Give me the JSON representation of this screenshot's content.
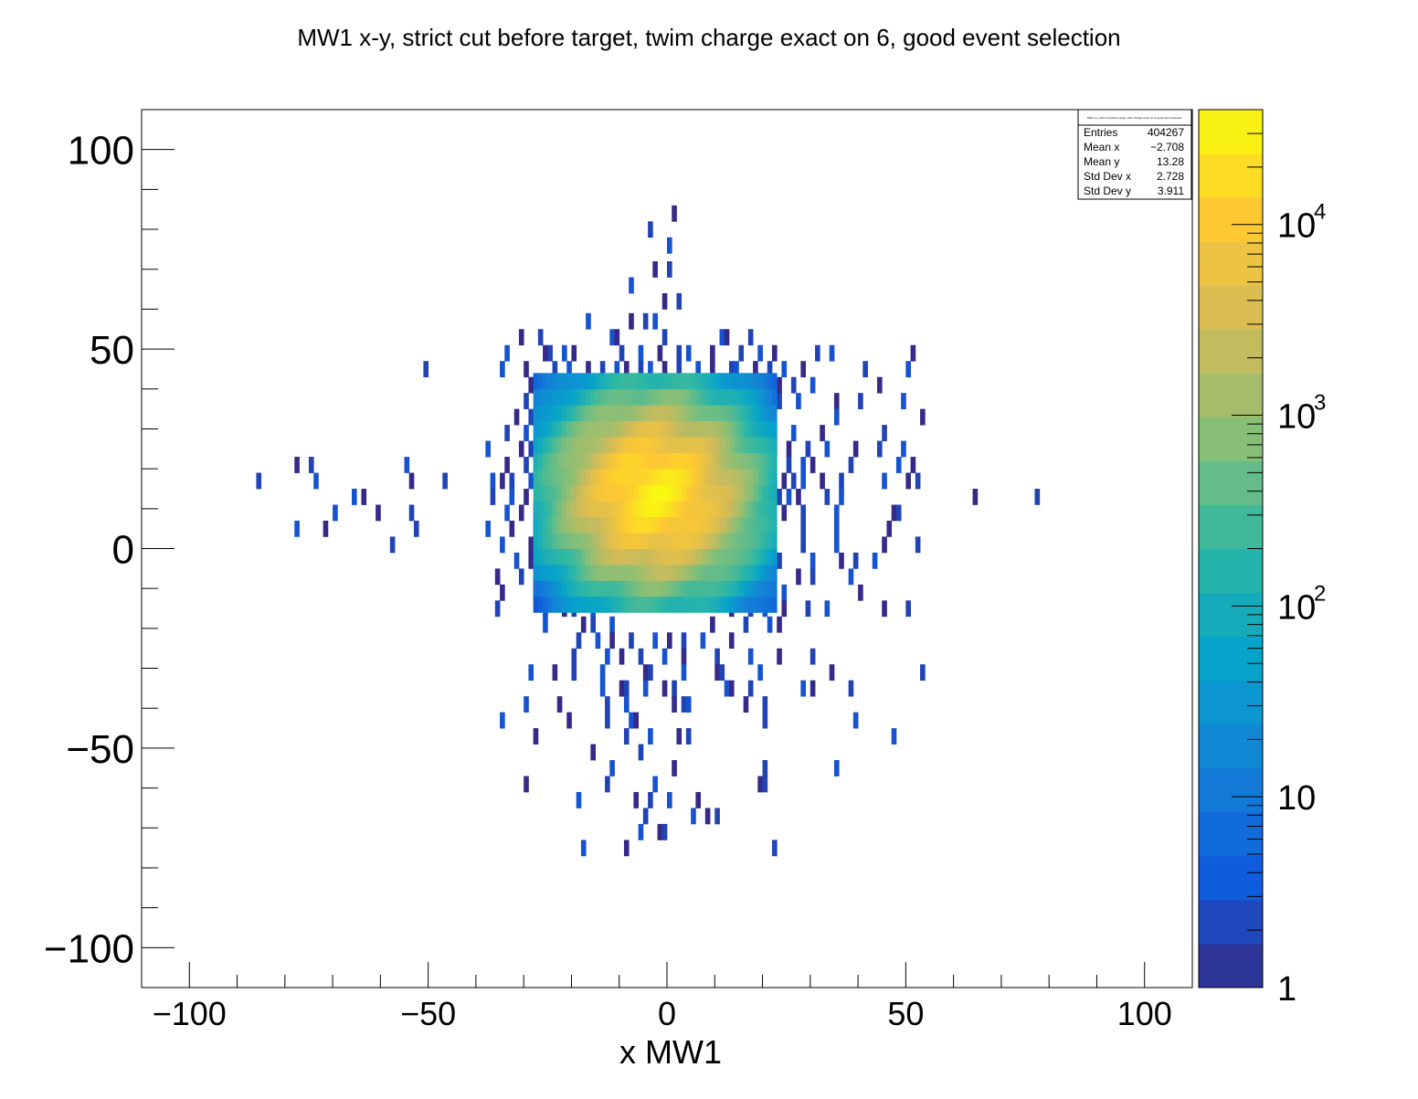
{
  "chart_data": {
    "type": "heatmap",
    "title": "MW1 x-y, strict cut before target, twim charge exact on  6, good event selection",
    "xlabel": "x MW1",
    "ylabel": "",
    "xlim": [
      -110,
      110
    ],
    "ylim": [
      -110,
      110
    ],
    "x_ticks": [
      "−100",
      "−50",
      "0",
      "50",
      "100"
    ],
    "y_ticks": [
      "100",
      "50",
      "0",
      "−50",
      "−100"
    ],
    "z_scale": "log",
    "z_range": [
      1,
      40000
    ],
    "z_ticks": [
      "1",
      "10",
      "10",
      "10",
      "10"
    ],
    "z_tick_exponents": [
      "",
      "",
      "2",
      "3",
      "4"
    ],
    "bin_width": 1,
    "bin_height": 4,
    "grid": false,
    "stats": {
      "legend_title": "MW1 x-y, strict cut before target, twim charge exact on 6, good event selection",
      "rows": [
        {
          "label": "Entries",
          "value": "404267"
        },
        {
          "label": "Mean x",
          "value": "−2.708"
        },
        {
          "label": "Mean y",
          "value": "13.28"
        },
        {
          "label": "Std Dev x",
          "value": "2.728"
        },
        {
          "label": "Std Dev y",
          "value": "3.911"
        }
      ]
    },
    "core": {
      "center_x": -3.0,
      "center_y": 14.0,
      "sigma_x": 5.5,
      "sigma_y": 6.5,
      "peak_count": 30000
    },
    "halo_cells": [
      [
        1,
        84
      ],
      [
        -4,
        80
      ],
      [
        0,
        76
      ],
      [
        -3,
        70
      ],
      [
        0,
        70
      ],
      [
        -8,
        66
      ],
      [
        -1,
        62
      ],
      [
        2,
        62
      ],
      [
        -17,
        57
      ],
      [
        -8,
        57
      ],
      [
        -5,
        57
      ],
      [
        -3,
        57
      ],
      [
        -31,
        53
      ],
      [
        -27,
        53
      ],
      [
        -12,
        53
      ],
      [
        -11,
        53
      ],
      [
        -1,
        53
      ],
      [
        11,
        53
      ],
      [
        12,
        53
      ],
      [
        17,
        53
      ],
      [
        -34,
        49
      ],
      [
        -26,
        49
      ],
      [
        -25,
        49
      ],
      [
        -22,
        49
      ],
      [
        -20,
        49
      ],
      [
        -10,
        49
      ],
      [
        -6,
        49
      ],
      [
        -2,
        49
      ],
      [
        2,
        49
      ],
      [
        4,
        49
      ],
      [
        9,
        49
      ],
      [
        15,
        49
      ],
      [
        19,
        49
      ],
      [
        22,
        49
      ],
      [
        31,
        49
      ],
      [
        34,
        49
      ],
      [
        51,
        49
      ],
      [
        -51,
        45
      ],
      [
        -35,
        45
      ],
      [
        -30,
        45
      ],
      [
        -24,
        45
      ],
      [
        -21,
        45
      ],
      [
        -17,
        45
      ],
      [
        -14,
        45
      ],
      [
        -11,
        45
      ],
      [
        -9,
        45
      ],
      [
        -6,
        45
      ],
      [
        -4,
        45
      ],
      [
        -1,
        45
      ],
      [
        2,
        45
      ],
      [
        6,
        45
      ],
      [
        9,
        45
      ],
      [
        13,
        45
      ],
      [
        14,
        45
      ],
      [
        18,
        45
      ],
      [
        21,
        45
      ],
      [
        24,
        45
      ],
      [
        28,
        45
      ],
      [
        41,
        45
      ],
      [
        50,
        45
      ],
      [
        -29,
        41
      ],
      [
        -27,
        41
      ],
      [
        -24,
        41
      ],
      [
        -21,
        41
      ],
      [
        -19,
        41
      ],
      [
        -16,
        41
      ],
      [
        7,
        41
      ],
      [
        10,
        41
      ],
      [
        17,
        41
      ],
      [
        23,
        41
      ],
      [
        26,
        41
      ],
      [
        30,
        41
      ],
      [
        44,
        41
      ],
      [
        -30,
        37
      ],
      [
        -23,
        37
      ],
      [
        -20,
        37
      ],
      [
        -17,
        37
      ],
      [
        13,
        37
      ],
      [
        16,
        37
      ],
      [
        23,
        37
      ],
      [
        27,
        37
      ],
      [
        35,
        37
      ],
      [
        40,
        37
      ],
      [
        49,
        37
      ],
      [
        -32,
        33
      ],
      [
        -29,
        33
      ],
      [
        -26,
        33
      ],
      [
        -24,
        33
      ],
      [
        12,
        33
      ],
      [
        15,
        33
      ],
      [
        17,
        33
      ],
      [
        20,
        33
      ],
      [
        35,
        33
      ],
      [
        53,
        33
      ],
      [
        -34,
        29
      ],
      [
        -30,
        29
      ],
      [
        -27,
        29
      ],
      [
        -23,
        29
      ],
      [
        10,
        29
      ],
      [
        18,
        29
      ],
      [
        22,
        29
      ],
      [
        26,
        29
      ],
      [
        32,
        29
      ],
      [
        45,
        29
      ],
      [
        -38,
        25
      ],
      [
        -31,
        25
      ],
      [
        -29,
        25
      ],
      [
        -27,
        25
      ],
      [
        -25,
        25
      ],
      [
        -21,
        25
      ],
      [
        11,
        25
      ],
      [
        14,
        25
      ],
      [
        18,
        25
      ],
      [
        22,
        25
      ],
      [
        25,
        25
      ],
      [
        29,
        25
      ],
      [
        33,
        25
      ],
      [
        39,
        25
      ],
      [
        44,
        25
      ],
      [
        49,
        25
      ],
      [
        -78,
        21
      ],
      [
        -75,
        21
      ],
      [
        -55,
        21
      ],
      [
        -34,
        21
      ],
      [
        -30,
        21
      ],
      [
        -28,
        21
      ],
      [
        -25,
        21
      ],
      [
        -23,
        21
      ],
      [
        12,
        21
      ],
      [
        18,
        21
      ],
      [
        25,
        21
      ],
      [
        28,
        21
      ],
      [
        30,
        21
      ],
      [
        38,
        21
      ],
      [
        48,
        21
      ],
      [
        51,
        21
      ],
      [
        -86,
        17
      ],
      [
        -74,
        17
      ],
      [
        -54,
        17
      ],
      [
        -47,
        17
      ],
      [
        -37,
        17
      ],
      [
        -35,
        17
      ],
      [
        -33,
        17
      ],
      [
        -29,
        17
      ],
      [
        -27,
        17
      ],
      [
        -24,
        17
      ],
      [
        -22,
        17
      ],
      [
        12,
        17
      ],
      [
        18,
        17
      ],
      [
        22,
        17
      ],
      [
        24,
        17
      ],
      [
        26,
        17
      ],
      [
        28,
        17
      ],
      [
        32,
        17
      ],
      [
        36,
        17
      ],
      [
        45,
        17
      ],
      [
        50,
        17
      ],
      [
        52,
        17
      ],
      [
        -66,
        13
      ],
      [
        -64,
        13
      ],
      [
        -37,
        13
      ],
      [
        -33,
        13
      ],
      [
        -30,
        13
      ],
      [
        -27,
        13
      ],
      [
        -25,
        13
      ],
      [
        -23,
        13
      ],
      [
        13,
        13
      ],
      [
        16,
        13
      ],
      [
        19,
        13
      ],
      [
        23,
        13
      ],
      [
        25,
        13
      ],
      [
        27,
        13
      ],
      [
        33,
        13
      ],
      [
        36,
        13
      ],
      [
        64,
        13
      ],
      [
        77,
        13
      ],
      [
        -70,
        9
      ],
      [
        -61,
        9
      ],
      [
        -54,
        9
      ],
      [
        -34,
        9
      ],
      [
        -31,
        9
      ],
      [
        -28,
        9
      ],
      [
        -25,
        9
      ],
      [
        14,
        9
      ],
      [
        19,
        9
      ],
      [
        21,
        9
      ],
      [
        24,
        9
      ],
      [
        28,
        9
      ],
      [
        35,
        9
      ],
      [
        47,
        9
      ],
      [
        48,
        9
      ],
      [
        -78,
        5
      ],
      [
        -72,
        5
      ],
      [
        -53,
        5
      ],
      [
        -38,
        5
      ],
      [
        -33,
        5
      ],
      [
        -28,
        5
      ],
      [
        -25,
        5
      ],
      [
        -22,
        5
      ],
      [
        13,
        5
      ],
      [
        17,
        5
      ],
      [
        21,
        5
      ],
      [
        28,
        5
      ],
      [
        35,
        5
      ],
      [
        46,
        5
      ],
      [
        -58,
        1
      ],
      [
        -35,
        1
      ],
      [
        -29,
        1
      ],
      [
        -26,
        1
      ],
      [
        -24,
        1
      ],
      [
        14,
        1
      ],
      [
        17,
        1
      ],
      [
        19,
        1
      ],
      [
        21,
        1
      ],
      [
        28,
        1
      ],
      [
        35,
        1
      ],
      [
        45,
        1
      ],
      [
        52,
        1
      ],
      [
        -32,
        -3
      ],
      [
        -29,
        -3
      ],
      [
        -24,
        -3
      ],
      [
        15,
        -3
      ],
      [
        19,
        -3
      ],
      [
        23,
        -3
      ],
      [
        30,
        -3
      ],
      [
        36,
        -3
      ],
      [
        39,
        -3
      ],
      [
        43,
        -3
      ],
      [
        -36,
        -7
      ],
      [
        -31,
        -7
      ],
      [
        -28,
        -7
      ],
      [
        -24,
        -7
      ],
      [
        -20,
        -7
      ],
      [
        11,
        -7
      ],
      [
        14,
        -7
      ],
      [
        18,
        -7
      ],
      [
        20,
        -7
      ],
      [
        27,
        -7
      ],
      [
        30,
        -7
      ],
      [
        38,
        -7
      ],
      [
        -35,
        -11
      ],
      [
        -28,
        -11
      ],
      [
        -23,
        -11
      ],
      [
        -18,
        -11
      ],
      [
        -15,
        -11
      ],
      [
        12,
        -11
      ],
      [
        15,
        -11
      ],
      [
        19,
        -11
      ],
      [
        24,
        -11
      ],
      [
        40,
        -11
      ],
      [
        -36,
        -15
      ],
      [
        -26,
        -15
      ],
      [
        -22,
        -15
      ],
      [
        -20,
        -15
      ],
      [
        -16,
        -15
      ],
      [
        13,
        -15
      ],
      [
        17,
        -15
      ],
      [
        20,
        -15
      ],
      [
        24,
        -15
      ],
      [
        29,
        -15
      ],
      [
        33,
        -15
      ],
      [
        45,
        -15
      ],
      [
        50,
        -15
      ],
      [
        -26,
        -19
      ],
      [
        -18,
        -19
      ],
      [
        -16,
        -19
      ],
      [
        -12,
        -19
      ],
      [
        9,
        -19
      ],
      [
        16,
        -19
      ],
      [
        21,
        -19
      ],
      [
        23,
        -19
      ],
      [
        -19,
        -23
      ],
      [
        -15,
        -23
      ],
      [
        -12,
        -23
      ],
      [
        -8,
        -23
      ],
      [
        -3,
        -23
      ],
      [
        0,
        -23
      ],
      [
        3,
        -23
      ],
      [
        7,
        -23
      ],
      [
        13,
        -23
      ],
      [
        -20,
        -27
      ],
      [
        -13,
        -27
      ],
      [
        -10,
        -27
      ],
      [
        -6,
        -27
      ],
      [
        -1,
        -27
      ],
      [
        3,
        -27
      ],
      [
        10,
        -27
      ],
      [
        17,
        -27
      ],
      [
        23,
        -27
      ],
      [
        30,
        -27
      ],
      [
        -29,
        -31
      ],
      [
        -24,
        -31
      ],
      [
        -20,
        -31
      ],
      [
        -14,
        -31
      ],
      [
        -5,
        -31
      ],
      [
        -4,
        -31
      ],
      [
        3,
        -31
      ],
      [
        10,
        -31
      ],
      [
        11,
        -31
      ],
      [
        19,
        -31
      ],
      [
        34,
        -31
      ],
      [
        53,
        -31
      ],
      [
        -14,
        -35
      ],
      [
        -10,
        -35
      ],
      [
        -9,
        -35
      ],
      [
        -5,
        -35
      ],
      [
        -1,
        -35
      ],
      [
        1,
        -35
      ],
      [
        12,
        -35
      ],
      [
        13,
        -35
      ],
      [
        17,
        -35
      ],
      [
        28,
        -35
      ],
      [
        30,
        -35
      ],
      [
        38,
        -35
      ],
      [
        -30,
        -39
      ],
      [
        -23,
        -39
      ],
      [
        -13,
        -39
      ],
      [
        -9,
        -39
      ],
      [
        1,
        -39
      ],
      [
        3,
        -39
      ],
      [
        4,
        -39
      ],
      [
        16,
        -39
      ],
      [
        20,
        -39
      ],
      [
        -35,
        -43
      ],
      [
        -21,
        -43
      ],
      [
        -13,
        -43
      ],
      [
        -8,
        -43
      ],
      [
        -7,
        -43
      ],
      [
        20,
        -43
      ],
      [
        39,
        -43
      ],
      [
        -28,
        -47
      ],
      [
        -9,
        -47
      ],
      [
        -4,
        -47
      ],
      [
        2,
        -47
      ],
      [
        4,
        -47
      ],
      [
        47,
        -47
      ],
      [
        -16,
        -51
      ],
      [
        -6,
        -51
      ],
      [
        -12,
        -55
      ],
      [
        1,
        -55
      ],
      [
        20,
        -55
      ],
      [
        35,
        -55
      ],
      [
        -30,
        -59
      ],
      [
        -13,
        -59
      ],
      [
        -3,
        -59
      ],
      [
        19,
        -59
      ],
      [
        20,
        -59
      ],
      [
        -19,
        -63
      ],
      [
        -7,
        -63
      ],
      [
        -4,
        -63
      ],
      [
        0,
        -63
      ],
      [
        6,
        -63
      ],
      [
        -5,
        -67
      ],
      [
        5,
        -67
      ],
      [
        8,
        -67
      ],
      [
        10,
        -67
      ],
      [
        -6,
        -71
      ],
      [
        -2,
        -71
      ],
      [
        -1,
        -71
      ],
      [
        -18,
        -75
      ],
      [
        -9,
        -75
      ],
      [
        22,
        -75
      ]
    ]
  }
}
